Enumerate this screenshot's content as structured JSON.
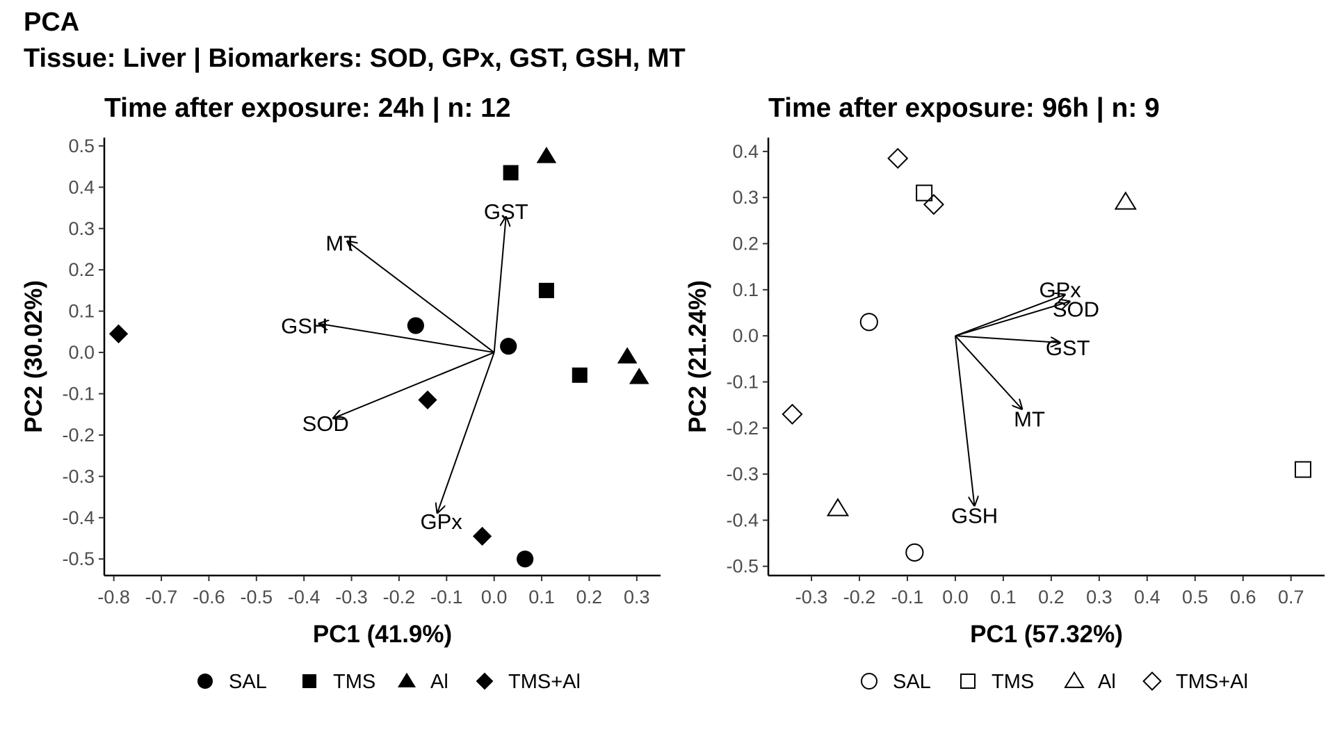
{
  "title": "PCA",
  "subtitle": "Tissue: Liver | Biomarkers: SOD, GPx, GST, GSH, MT",
  "chart_data": [
    {
      "type": "scatter",
      "title": "Time after exposure: 24h | n: 12",
      "xlabel": "PC1 (41.9%)",
      "ylabel": "PC2 (30.02%)",
      "xlim": [
        -0.82,
        0.35
      ],
      "ylim": [
        -0.54,
        0.52
      ],
      "xticks": [
        "-0.8",
        "-0.7",
        "-0.6",
        "-0.5",
        "-0.4",
        "-0.3",
        "-0.2",
        "-0.1",
        "0.0",
        "0.1",
        "0.2",
        "0.3"
      ],
      "yticks": [
        "-0.5",
        "-0.4",
        "-0.3",
        "-0.2",
        "-0.1",
        "0.0",
        "0.1",
        "0.2",
        "0.3",
        "0.4",
        "0.5"
      ],
      "marker_fill": "filled",
      "grid": false,
      "legend_position": "bottom",
      "series": [
        {
          "name": "SAL",
          "shape": "circle",
          "points": [
            [
              -0.165,
              0.065
            ],
            [
              0.03,
              0.015
            ],
            [
              0.065,
              -0.5
            ]
          ]
        },
        {
          "name": "TMS",
          "shape": "square",
          "points": [
            [
              0.035,
              0.435
            ],
            [
              0.11,
              0.15
            ],
            [
              0.18,
              -0.055
            ]
          ]
        },
        {
          "name": "Al",
          "shape": "triangle",
          "points": [
            [
              0.11,
              0.475
            ],
            [
              0.28,
              -0.01
            ],
            [
              0.305,
              -0.06
            ]
          ]
        },
        {
          "name": "TMS+Al",
          "shape": "diamond",
          "points": [
            [
              -0.79,
              0.045
            ],
            [
              -0.14,
              -0.115
            ],
            [
              -0.025,
              -0.445
            ]
          ]
        }
      ],
      "loadings": [
        {
          "name": "GST",
          "x": 0.025,
          "y": 0.33
        },
        {
          "name": "MT",
          "x": -0.31,
          "y": 0.27
        },
        {
          "name": "GSH",
          "x": -0.37,
          "y": 0.07
        },
        {
          "name": "SOD",
          "x": -0.34,
          "y": -0.16
        },
        {
          "name": "GPx",
          "x": -0.12,
          "y": -0.39
        }
      ]
    },
    {
      "type": "scatter",
      "title": "Time after exposure: 96h | n: 9",
      "xlabel": "PC1 (57.32%)",
      "ylabel": "PC2 (21.24%)",
      "xlim": [
        -0.39,
        0.77
      ],
      "ylim": [
        -0.52,
        0.43
      ],
      "xticks": [
        "-0.3",
        "-0.2",
        "-0.1",
        "0.0",
        "0.1",
        "0.2",
        "0.3",
        "0.4",
        "0.5",
        "0.6",
        "0.7"
      ],
      "yticks": [
        "-0.5",
        "-0.4",
        "-0.3",
        "-0.2",
        "-0.1",
        "0.0",
        "0.1",
        "0.2",
        "0.3",
        "0.4"
      ],
      "marker_fill": "open",
      "grid": false,
      "legend_position": "bottom",
      "series": [
        {
          "name": "SAL",
          "shape": "circle",
          "points": [
            [
              -0.18,
              0.03
            ],
            [
              -0.085,
              -0.47
            ]
          ]
        },
        {
          "name": "TMS",
          "shape": "square",
          "points": [
            [
              -0.065,
              0.31
            ],
            [
              0.725,
              -0.29
            ]
          ]
        },
        {
          "name": "Al",
          "shape": "triangle",
          "points": [
            [
              0.355,
              0.29
            ],
            [
              -0.245,
              -0.375
            ]
          ]
        },
        {
          "name": "TMS+Al",
          "shape": "diamond",
          "points": [
            [
              -0.12,
              0.385
            ],
            [
              -0.045,
              0.285
            ],
            [
              -0.34,
              -0.17
            ]
          ]
        }
      ],
      "loadings": [
        {
          "name": "GPx",
          "x": 0.23,
          "y": 0.09
        },
        {
          "name": "SOD",
          "x": 0.24,
          "y": 0.075
        },
        {
          "name": "GST",
          "x": 0.22,
          "y": -0.015
        },
        {
          "name": "MT",
          "x": 0.14,
          "y": -0.16
        },
        {
          "name": "GSH",
          "x": 0.04,
          "y": -0.37
        }
      ]
    }
  ]
}
